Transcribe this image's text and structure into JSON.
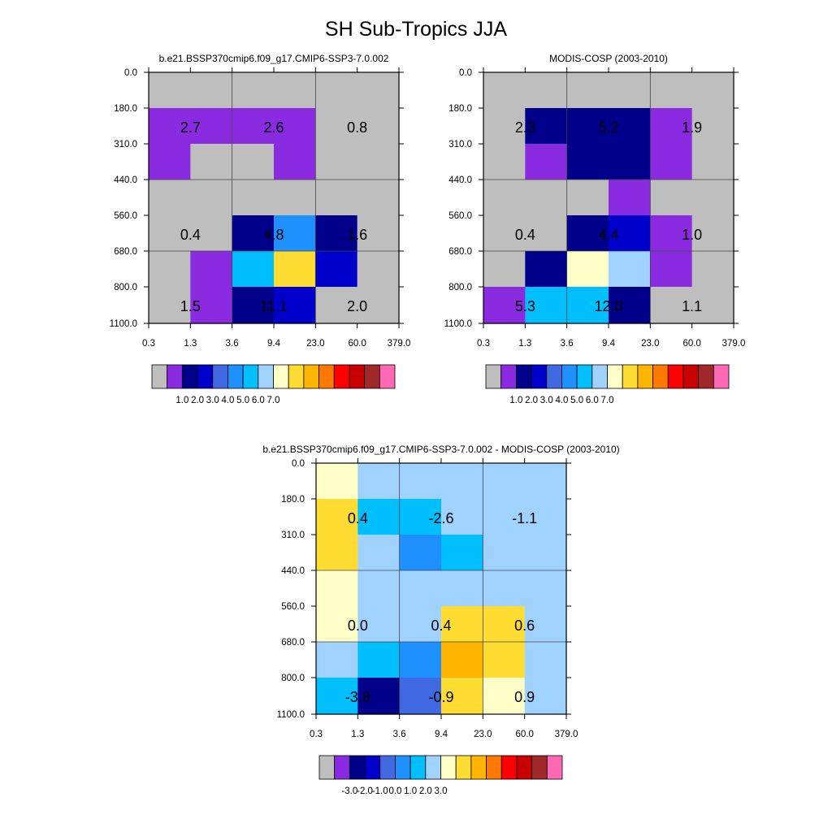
{
  "title": "SH Sub-Tropics JJA",
  "chart_data": [
    {
      "type": "heatmap",
      "title": "b.e21.BSSP370cmip6.f09_g17.CMIP6-SSP3-7.0.002",
      "x_ticks": [
        "0.3",
        "1.3",
        "3.6",
        "9.4",
        "23.0",
        "60.0",
        "379.0"
      ],
      "y_ticks": [
        "0.0",
        "180.0",
        "310.0",
        "440.0",
        "560.0",
        "680.0",
        "800.0",
        "1100.0"
      ],
      "colors": [
        "#bebebe",
        "#8a2be2",
        "#00008b",
        "#0000cd",
        "#4169e1",
        "#1e90ff",
        "#00bfff",
        "#a0d2ff",
        "#ffffc8",
        "#ffdc32",
        "#ffb400",
        "#ff7800",
        "#ff0000",
        "#c80000",
        "#a02828",
        "#ff69b4"
      ],
      "colorbar_labels": [
        "1.0",
        "2.0",
        "3.0",
        "4.0",
        "5.0",
        "6.0",
        "7.0"
      ],
      "cells": [
        [
          0,
          0,
          0,
          0,
          0,
          0
        ],
        [
          1,
          1,
          1,
          1,
          0,
          0
        ],
        [
          1,
          0,
          0,
          1,
          0,
          0
        ],
        [
          0,
          0,
          0,
          0,
          0,
          0
        ],
        [
          0,
          0,
          2,
          5,
          2,
          0
        ],
        [
          0,
          1,
          6,
          9,
          3,
          0
        ],
        [
          0,
          1,
          2,
          3,
          0,
          0
        ]
      ],
      "labels": [
        {
          "col": 0,
          "row": 1,
          "text": "2.7"
        },
        {
          "col": 1,
          "row": 1,
          "text": "2.6"
        },
        {
          "col": 2,
          "row": 1,
          "text": "0.8"
        },
        {
          "col": 0,
          "row": 4,
          "text": "0.4"
        },
        {
          "col": 1,
          "row": 4,
          "text": "4.8"
        },
        {
          "col": 2,
          "row": 4,
          "text": "1.6"
        },
        {
          "col": 0,
          "row": 6,
          "text": "1.5"
        },
        {
          "col": 1,
          "row": 6,
          "text": "11.1"
        },
        {
          "col": 2,
          "row": 6,
          "text": "2.0"
        }
      ]
    },
    {
      "type": "heatmap",
      "title": "MODIS-COSP (2003-2010)",
      "x_ticks": [
        "0.3",
        "1.3",
        "3.6",
        "9.4",
        "23.0",
        "60.0",
        "379.0"
      ],
      "y_ticks": [
        "0.0",
        "180.0",
        "310.0",
        "440.0",
        "560.0",
        "680.0",
        "800.0",
        "1100.0"
      ],
      "colors": [
        "#bebebe",
        "#8a2be2",
        "#00008b",
        "#0000cd",
        "#4169e1",
        "#1e90ff",
        "#00bfff",
        "#a0d2ff",
        "#ffffc8",
        "#ffdc32",
        "#ffb400",
        "#ff7800",
        "#ff0000",
        "#c80000",
        "#a02828",
        "#ff69b4"
      ],
      "colorbar_labels": [
        "1.0",
        "2.0",
        "3.0",
        "4.0",
        "5.0",
        "6.0",
        "7.0"
      ],
      "cells": [
        [
          0,
          0,
          0,
          0,
          0,
          0
        ],
        [
          0,
          2,
          2,
          2,
          1,
          0
        ],
        [
          0,
          1,
          2,
          2,
          1,
          0
        ],
        [
          0,
          0,
          0,
          1,
          0,
          0
        ],
        [
          0,
          0,
          2,
          3,
          1,
          0
        ],
        [
          0,
          2,
          8,
          7,
          1,
          0
        ],
        [
          1,
          6,
          6,
          2,
          0,
          0
        ]
      ],
      "labels": [
        {
          "col": 0,
          "row": 1,
          "text": "2.3"
        },
        {
          "col": 1,
          "row": 1,
          "text": "5.2"
        },
        {
          "col": 2,
          "row": 1,
          "text": "1.9"
        },
        {
          "col": 0,
          "row": 4,
          "text": "0.4"
        },
        {
          "col": 1,
          "row": 4,
          "text": "4.4"
        },
        {
          "col": 2,
          "row": 4,
          "text": "1.0"
        },
        {
          "col": 0,
          "row": 6,
          "text": "5.3"
        },
        {
          "col": 1,
          "row": 6,
          "text": "12.0"
        },
        {
          "col": 2,
          "row": 6,
          "text": "1.1"
        }
      ]
    },
    {
      "type": "heatmap",
      "title": "b.e21.BSSP370cmip6.f09_g17.CMIP6-SSP3-7.0.002 - MODIS-COSP (2003-2010)",
      "x_ticks": [
        "0.3",
        "1.3",
        "3.6",
        "9.4",
        "23.0",
        "60.0",
        "379.0"
      ],
      "y_ticks": [
        "0.0",
        "180.0",
        "310.0",
        "440.0",
        "560.0",
        "680.0",
        "800.0",
        "1100.0"
      ],
      "colors": [
        "#bebebe",
        "#8a2be2",
        "#00008b",
        "#0000cd",
        "#4169e1",
        "#1e90ff",
        "#00bfff",
        "#a0d2ff",
        "#ffffc8",
        "#ffdc32",
        "#ffb400",
        "#ff7800",
        "#ff0000",
        "#c80000",
        "#a02828",
        "#ff69b4"
      ],
      "colorbar_labels": [
        "-3.0",
        "-2.0",
        "-1.0",
        "0.0",
        "1.0",
        "2.0",
        "3.0"
      ],
      "cells": [
        [
          8,
          7,
          7,
          7,
          7,
          7
        ],
        [
          9,
          6,
          6,
          7,
          7,
          7
        ],
        [
          9,
          7,
          5,
          6,
          7,
          7
        ],
        [
          8,
          7,
          7,
          7,
          7,
          7
        ],
        [
          8,
          7,
          7,
          9,
          9,
          7
        ],
        [
          7,
          6,
          5,
          10,
          9,
          7
        ],
        [
          6,
          2,
          4,
          9,
          8,
          7
        ]
      ],
      "labels": [
        {
          "col": 0,
          "row": 1,
          "text": "0.4"
        },
        {
          "col": 1,
          "row": 1,
          "text": "-2.6"
        },
        {
          "col": 2,
          "row": 1,
          "text": "-1.1"
        },
        {
          "col": 0,
          "row": 4,
          "text": "0.0"
        },
        {
          "col": 1,
          "row": 4,
          "text": "0.4"
        },
        {
          "col": 2,
          "row": 4,
          "text": "0.6"
        },
        {
          "col": 0,
          "row": 6,
          "text": "-3.8"
        },
        {
          "col": 1,
          "row": 6,
          "text": "-0.9"
        },
        {
          "col": 2,
          "row": 6,
          "text": "0.9"
        }
      ]
    }
  ]
}
